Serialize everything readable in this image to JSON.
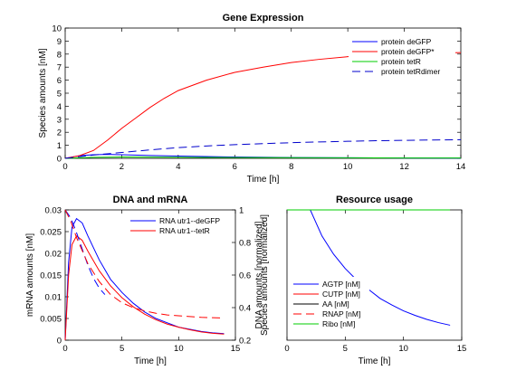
{
  "chart_data": [
    {
      "type": "line",
      "title": "Gene Expression",
      "xlabel": "Time [h]",
      "ylabel": "Species amounts [nM]",
      "xlim": [
        0,
        14
      ],
      "ylim": [
        0,
        10
      ],
      "xticks": [
        0,
        2,
        4,
        6,
        8,
        10,
        12,
        14
      ],
      "yticks": [
        0,
        1,
        2,
        3,
        4,
        5,
        6,
        7,
        8,
        9,
        10
      ],
      "grid": false,
      "legend_position": "top-right",
      "series": [
        {
          "name": "protein deGFP",
          "color": "#0000ff",
          "dash": "solid",
          "x": [
            0,
            0.5,
            1,
            1.5,
            2,
            3,
            4,
            6,
            8,
            10,
            12,
            14
          ],
          "y": [
            0,
            0.2,
            0.28,
            0.3,
            0.28,
            0.22,
            0.17,
            0.1,
            0.06,
            0.04,
            0.03,
            0.02
          ]
        },
        {
          "name": "protein deGFP*",
          "color": "#ff0000",
          "dash": "solid",
          "x": [
            0,
            0.5,
            1,
            1.5,
            2,
            2.5,
            3,
            3.5,
            4,
            5,
            6,
            7,
            8,
            9,
            10,
            11,
            12,
            13,
            14
          ],
          "y": [
            0,
            0.2,
            0.6,
            1.4,
            2.3,
            3.1,
            3.9,
            4.6,
            5.2,
            6.0,
            6.6,
            7.0,
            7.35,
            7.6,
            7.8,
            7.92,
            8.02,
            8.08,
            8.12
          ]
        },
        {
          "name": "protein tetR",
          "color": "#00cc00",
          "dash": "solid",
          "x": [
            0,
            1,
            2,
            4,
            6,
            8,
            10,
            12,
            14
          ],
          "y": [
            0,
            0.08,
            0.1,
            0.08,
            0.06,
            0.05,
            0.04,
            0.03,
            0.03
          ]
        },
        {
          "name": "protein tetRdimer",
          "color": "#0000cc",
          "dash": "dashed",
          "x": [
            0,
            1,
            2,
            3,
            4,
            5,
            6,
            7,
            8,
            9,
            10,
            11,
            12,
            13,
            14
          ],
          "y": [
            0,
            0.25,
            0.45,
            0.65,
            0.82,
            0.95,
            1.05,
            1.13,
            1.2,
            1.26,
            1.31,
            1.35,
            1.38,
            1.41,
            1.43
          ]
        }
      ]
    },
    {
      "type": "line",
      "title": "DNA and mRNA",
      "xlabel": "Time [h]",
      "ylabel": "mRNA amounts [nM]",
      "y2label": "DNA amounts [normalized]",
      "xlim": [
        0,
        15
      ],
      "ylim": [
        0,
        0.03
      ],
      "y2lim": [
        0.2,
        1
      ],
      "xticks": [
        0,
        5,
        10,
        15
      ],
      "yticks": [
        0,
        0.005,
        0.01,
        0.015,
        0.02,
        0.025,
        0.03
      ],
      "ytick_labels": [
        "0",
        "0.005",
        "0.01",
        "0.015",
        "0.02",
        "0.025",
        "0.03"
      ],
      "y2ticks": [
        0.2,
        0.4,
        0.6,
        0.8,
        1
      ],
      "y2tick_labels": [
        "0.2",
        "0.4",
        "0.6",
        "0.8",
        "1"
      ],
      "grid": false,
      "legend_position": "top-right",
      "series": [
        {
          "name": "RNA utr1--deGFP",
          "color": "#0000ff",
          "dash": "solid",
          "axis": "left",
          "x": [
            0,
            0.3,
            0.6,
            1,
            1.5,
            2,
            3,
            4,
            5,
            6,
            7,
            8,
            9,
            10,
            11,
            12,
            13,
            14
          ],
          "y": [
            0,
            0.018,
            0.026,
            0.028,
            0.027,
            0.024,
            0.0185,
            0.014,
            0.011,
            0.0085,
            0.0065,
            0.005,
            0.004,
            0.003,
            0.0025,
            0.002,
            0.0017,
            0.0015
          ]
        },
        {
          "name": "RNA utr1--tetR",
          "color": "#ff0000",
          "dash": "solid",
          "axis": "left",
          "x": [
            0,
            0.3,
            0.6,
            1,
            1.5,
            2,
            3,
            4,
            5,
            6,
            7,
            8,
            9,
            10,
            11,
            12,
            13,
            14
          ],
          "y": [
            0,
            0.015,
            0.022,
            0.024,
            0.023,
            0.0205,
            0.016,
            0.0125,
            0.0098,
            0.0077,
            0.006,
            0.0047,
            0.0037,
            0.003,
            0.0024,
            0.0019,
            0.0016,
            0.0014
          ]
        },
        {
          "color": "#0000ff",
          "dash": "dashed",
          "axis": "right",
          "x": [
            0,
            0.5,
            1,
            1.5,
            2,
            2.5,
            3,
            3.5
          ],
          "y": [
            1,
            0.95,
            0.86,
            0.76,
            0.66,
            0.58,
            0.52,
            0.48
          ]
        },
        {
          "color": "#ff0000",
          "dash": "dashed",
          "axis": "right",
          "x": [
            0,
            0.5,
            1,
            2,
            3,
            4,
            5,
            6,
            7,
            8,
            9,
            10,
            11,
            12,
            13,
            14
          ],
          "y": [
            1,
            0.93,
            0.83,
            0.67,
            0.56,
            0.48,
            0.43,
            0.4,
            0.38,
            0.365,
            0.355,
            0.35,
            0.345,
            0.34,
            0.338,
            0.336
          ]
        }
      ]
    },
    {
      "type": "line",
      "title": "Resource usage",
      "xlabel": "Time [h]",
      "ylabel": "Species amounts [normalized]",
      "xlim": [
        0,
        15
      ],
      "ylim": [
        0,
        1
      ],
      "xticks": [
        0,
        5,
        10,
        15
      ],
      "grid": false,
      "legend_position": "bottom-left",
      "series": [
        {
          "name": "AGTP [nM]",
          "color": "#0000ff",
          "dash": "solid",
          "x": [
            0,
            2,
            2.5,
            3,
            4,
            5,
            6,
            7,
            8,
            9,
            10,
            11,
            12,
            13,
            14
          ],
          "y": [
            1,
            1,
            0.9,
            0.8,
            0.66,
            0.55,
            0.46,
            0.39,
            0.32,
            0.27,
            0.225,
            0.19,
            0.16,
            0.135,
            0.115
          ]
        },
        {
          "name": "CUTP [nM]",
          "color": "#ff0000",
          "dash": "solid",
          "x": [
            0,
            14
          ],
          "y": [
            1,
            1
          ]
        },
        {
          "name": "AA [nM]",
          "color": "#000000",
          "dash": "solid",
          "x": [
            0,
            14
          ],
          "y": [
            1,
            1
          ]
        },
        {
          "name": "RNAP [nM]",
          "color": "#ff0000",
          "dash": "dashed",
          "x": [
            0,
            14
          ],
          "y": [
            1,
            1
          ]
        },
        {
          "name": "Ribo [nM]",
          "color": "#00cc00",
          "dash": "solid",
          "x": [
            0,
            14
          ],
          "y": [
            1,
            1
          ]
        }
      ]
    }
  ]
}
